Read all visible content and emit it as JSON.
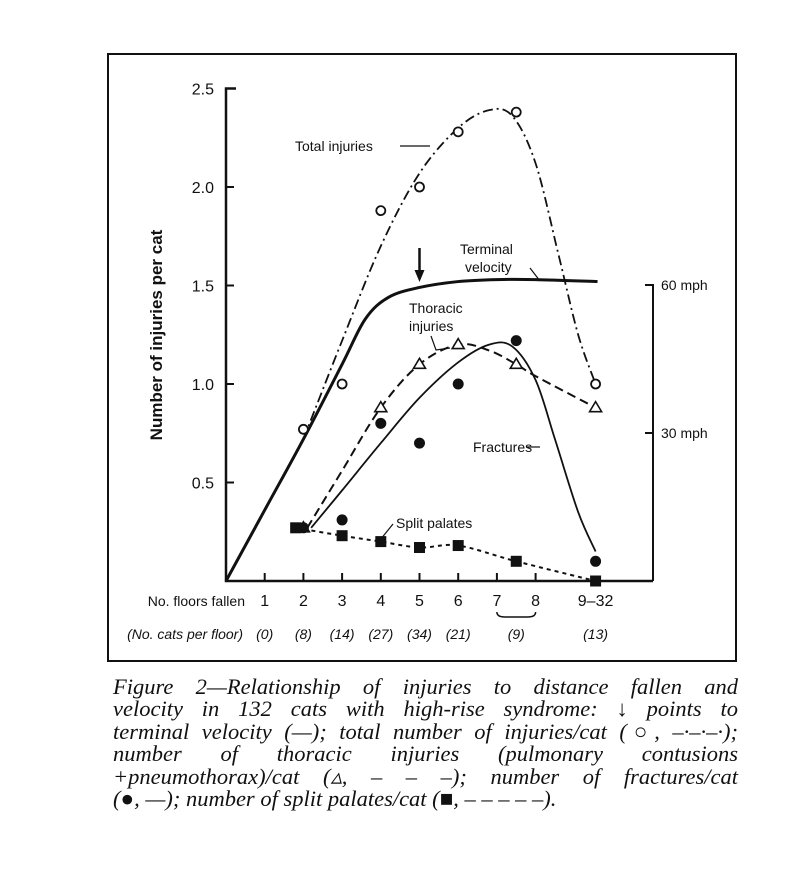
{
  "chart_data": {
    "type": "line",
    "ylabel": "Number of injuries per cat",
    "ylim": [
      0,
      2.5
    ],
    "yticks": [
      "0.5",
      "1.0",
      "1.5",
      "2.0",
      "2.5"
    ],
    "right_axis": {
      "unit": "mph",
      "ticks": [
        "30 mph",
        "60 mph"
      ],
      "values": [
        30,
        60
      ]
    },
    "xlabel": "No. floors fallen",
    "xticks": [
      "1",
      "2",
      "3",
      "4",
      "5",
      "6",
      "7",
      "8",
      "9-32"
    ],
    "x_sublabel": "(No. cats per floor)",
    "cats_per_floor": [
      {
        "floor": "1",
        "label": "(0)"
      },
      {
        "floor": "2",
        "label": "(8)"
      },
      {
        "floor": "3",
        "label": "(14)"
      },
      {
        "floor": "4",
        "label": "(27)"
      },
      {
        "floor": "5",
        "label": "(34)"
      },
      {
        "floor": "6",
        "label": "(21)"
      },
      {
        "floor": "7-8",
        "label": "(9)"
      },
      {
        "floor": "9-32",
        "label": "(13)"
      }
    ],
    "grid": false,
    "series": [
      {
        "name": "Total injuries",
        "marker": "open-circle",
        "line": "dash-dot",
        "points": [
          [
            2,
            0.77
          ],
          [
            3,
            1.0
          ],
          [
            4,
            1.88
          ],
          [
            5,
            2.0
          ],
          [
            6,
            2.28
          ],
          [
            "7-8",
            2.38
          ],
          [
            "9-32",
            1.0
          ]
        ],
        "curve": [
          [
            2,
            0.72
          ],
          [
            3,
            1.22
          ],
          [
            4,
            1.7
          ],
          [
            5,
            2.07
          ],
          [
            6,
            2.3
          ],
          [
            6.8,
            2.39
          ],
          [
            7.4,
            2.36
          ],
          [
            8,
            2.12
          ],
          [
            8.6,
            1.65
          ],
          [
            9.1,
            1.25
          ],
          [
            "9-32",
            1.0
          ]
        ]
      },
      {
        "name": "Terminal velocity",
        "marker": "none",
        "line": "solid-thick",
        "curve": [
          [
            0,
            0
          ],
          [
            1,
            0.36
          ],
          [
            2,
            0.72
          ],
          [
            3,
            1.1
          ],
          [
            3.6,
            1.33
          ],
          [
            4.2,
            1.44
          ],
          [
            5,
            1.49
          ],
          [
            6,
            1.52
          ],
          [
            7,
            1.53
          ],
          [
            8,
            1.53
          ],
          [
            9.6,
            1.52
          ]
        ]
      },
      {
        "name": "Thoracic injuries",
        "marker": "open-triangle",
        "line": "dashed",
        "points": [
          [
            2,
            0.27
          ],
          [
            4,
            0.88
          ],
          [
            5,
            1.1
          ],
          [
            6,
            1.2
          ],
          [
            "7-8",
            1.1
          ],
          [
            "9-32",
            0.88
          ]
        ],
        "curve": [
          [
            2.1,
            0.27
          ],
          [
            3,
            0.56
          ],
          [
            4,
            0.88
          ],
          [
            5,
            1.1
          ],
          [
            6,
            1.2
          ],
          [
            6.8,
            1.17
          ],
          [
            "7-8",
            1.1
          ],
          [
            8,
            1.04
          ],
          [
            "9-32",
            0.88
          ]
        ]
      },
      {
        "name": "Fractures",
        "marker": "filled-circle",
        "line": "solid",
        "points": [
          [
            2,
            0.27
          ],
          [
            3,
            0.31
          ],
          [
            4,
            0.8
          ],
          [
            5,
            0.7
          ],
          [
            6,
            1.0
          ],
          [
            "7-8",
            1.22
          ],
          [
            "9-32",
            0.1
          ]
        ],
        "curve": [
          [
            2.2,
            0.27
          ],
          [
            3,
            0.46
          ],
          [
            4,
            0.7
          ],
          [
            5,
            0.93
          ],
          [
            6,
            1.11
          ],
          [
            6.8,
            1.2
          ],
          [
            7.4,
            1.19
          ],
          [
            8,
            1.02
          ],
          [
            8.5,
            0.72
          ],
          [
            9.1,
            0.35
          ],
          [
            "9-32",
            0.15
          ]
        ]
      },
      {
        "name": "Split palates",
        "marker": "filled-square",
        "line": "dotted",
        "points": [
          [
            1.8,
            0.27
          ],
          [
            3,
            0.23
          ],
          [
            4,
            0.2
          ],
          [
            5,
            0.17
          ],
          [
            6,
            0.18
          ],
          [
            "7-8",
            0.1
          ],
          [
            "9-32",
            0.0
          ]
        ],
        "curve": [
          [
            1.8,
            0.27
          ],
          [
            3,
            0.23
          ],
          [
            4,
            0.2
          ],
          [
            5,
            0.17
          ],
          [
            6,
            0.18
          ],
          [
            "7-8",
            0.1
          ],
          [
            "9-32",
            0.0
          ]
        ]
      }
    ],
    "annotations": {
      "total": "Total injuries",
      "terminal_1": "Terminal",
      "terminal_2": "velocity",
      "thoracic_1": "Thoracic",
      "thoracic_2": "injuries",
      "fractures": "Fractures",
      "split": "Split palates"
    }
  },
  "caption": {
    "lines": [
      "Figure 2—Relationship of injuries to distance fallen and",
      "velocity in 132 cats with high-rise syndrome: ↓ points to",
      "terminal velocity (—); total number of injuries/cat (○, –·–·–·);",
      "number of thoracic injuries (pulmonary contusions",
      "+pneumothorax)/cat (▵, – – –); number of fractures/cat",
      "(●, —); number of split palates/cat (■, – – – – –)."
    ]
  }
}
